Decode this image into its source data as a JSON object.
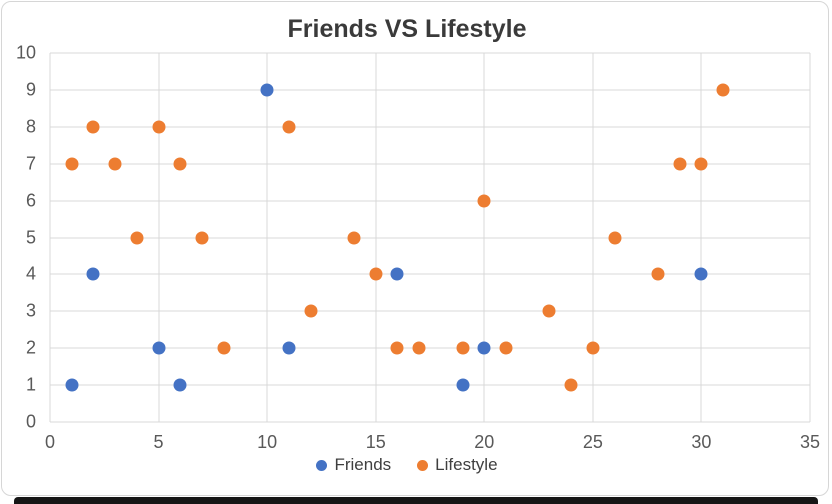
{
  "chart_data": {
    "type": "scatter",
    "title": "Friends VS Lifestyle",
    "xlabel": "",
    "ylabel": "",
    "xlim": [
      0,
      35
    ],
    "ylim": [
      0,
      10
    ],
    "x_ticks": [
      0,
      5,
      10,
      15,
      20,
      25,
      30,
      35
    ],
    "y_ticks": [
      0,
      1,
      2,
      3,
      4,
      5,
      6,
      7,
      8,
      9,
      10
    ],
    "grid": true,
    "legend_position": "bottom",
    "series": [
      {
        "name": "Friends",
        "color": "#4472C4",
        "points": [
          [
            1,
            1
          ],
          [
            2,
            4
          ],
          [
            5,
            2
          ],
          [
            6,
            1
          ],
          [
            10,
            9
          ],
          [
            11,
            2
          ],
          [
            16,
            4
          ],
          [
            19,
            1
          ],
          [
            20,
            2
          ],
          [
            30,
            4
          ]
        ]
      },
      {
        "name": "Lifestyle",
        "color": "#ED7D31",
        "points": [
          [
            1,
            7
          ],
          [
            2,
            8
          ],
          [
            3,
            7
          ],
          [
            4,
            5
          ],
          [
            5,
            8
          ],
          [
            6,
            7
          ],
          [
            7,
            5
          ],
          [
            8,
            2
          ],
          [
            11,
            8
          ],
          [
            12,
            3
          ],
          [
            14,
            5
          ],
          [
            15,
            4
          ],
          [
            16,
            2
          ],
          [
            17,
            2
          ],
          [
            19,
            2
          ],
          [
            20,
            6
          ],
          [
            21,
            2
          ],
          [
            23,
            3
          ],
          [
            24,
            1
          ],
          [
            25,
            2
          ],
          [
            26,
            5
          ],
          [
            28,
            4
          ],
          [
            29,
            7
          ],
          [
            30,
            7
          ],
          [
            31,
            9
          ]
        ]
      }
    ]
  },
  "styles": {
    "grid_color": "#d9d9d9",
    "tick_color": "#595959",
    "title_color": "#3a3a3a",
    "card_border_color": "#d6d6d6",
    "bottom_bar_color": "#161616"
  }
}
